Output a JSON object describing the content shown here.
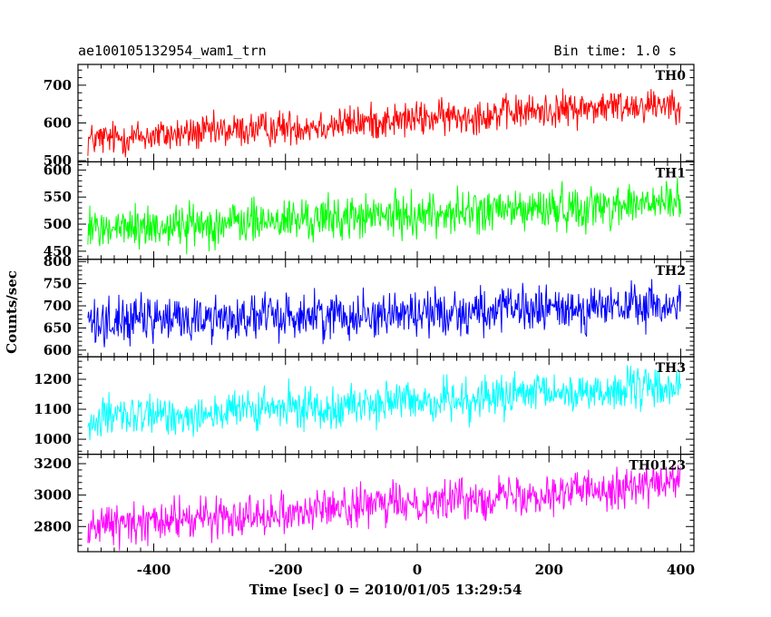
{
  "chart_data": {
    "type": "line",
    "title": "ae100105132954_wam1_trn",
    "subtitle": "Bin time: 1.0 s",
    "xlabel": "Time [sec] 0 = 2010/01/05 13:29:54",
    "ylabel": "Counts/sec",
    "xlim": [
      -515,
      420
    ],
    "x_ticks": [
      -400,
      -200,
      0,
      200,
      400
    ],
    "x_range": [
      -500,
      400
    ],
    "bin_time": 1.0,
    "grid": false,
    "panels": [
      {
        "name": "TH0",
        "color": "#ff0000",
        "ylim": [
          497,
          755
        ],
        "y_ticks": [
          500,
          600,
          700
        ],
        "trend_start": 555,
        "trend_end": 655,
        "noise_amplitude": 40
      },
      {
        "name": "TH1",
        "color": "#00ff00",
        "ylim": [
          435,
          615
        ],
        "y_ticks": [
          450,
          500,
          550,
          600
        ],
        "trend_start": 490,
        "trend_end": 540,
        "noise_amplitude": 35
      },
      {
        "name": "TH2",
        "color": "#0000ff",
        "ylim": [
          585,
          805
        ],
        "y_ticks": [
          600,
          650,
          700,
          750,
          800
        ],
        "trend_start": 665,
        "trend_end": 700,
        "noise_amplitude": 45
      },
      {
        "name": "TH3",
        "color": "#00ffff",
        "ylim": [
          950,
          1275
        ],
        "y_ticks": [
          1000,
          1100,
          1200
        ],
        "trend_start": 1065,
        "trend_end": 1175,
        "noise_amplitude": 60
      },
      {
        "name": "TH0123",
        "color": "#ff00ff",
        "ylim": [
          2640,
          3260
        ],
        "y_ticks": [
          2800,
          3000,
          3200
        ],
        "trend_start": 2800,
        "trend_end": 3080,
        "noise_amplitude": 110
      }
    ]
  }
}
